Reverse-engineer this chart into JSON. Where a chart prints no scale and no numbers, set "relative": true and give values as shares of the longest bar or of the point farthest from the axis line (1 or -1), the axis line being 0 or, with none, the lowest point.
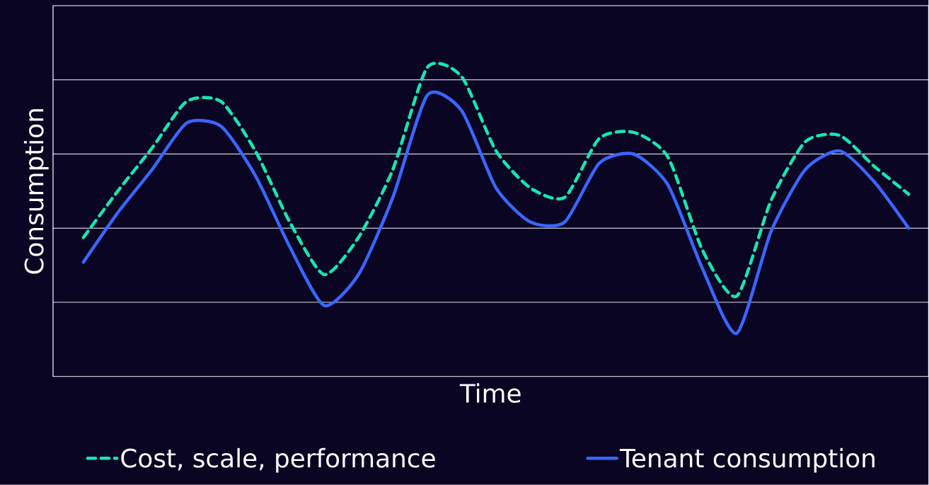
{
  "chart_data": {
    "type": "line",
    "relative": true,
    "xlabel": "Time",
    "ylabel": "Consumption",
    "grid": "y",
    "legend": "bottom",
    "categories": [
      null,
      null,
      null,
      null,
      null,
      null,
      null,
      null,
      null,
      null,
      null,
      null,
      null,
      null,
      null,
      null,
      null,
      null,
      null,
      null,
      null,
      null,
      null,
      null,
      null
    ],
    "series": [
      {
        "name": "Cost, scale, performance",
        "color": "#14e8b0",
        "line_style": "dashed",
        "values": [
          0.45,
          0.6,
          0.74,
          0.89,
          0.89,
          0.73,
          0.5,
          0.33,
          0.45,
          0.67,
          1,
          0.97,
          0.73,
          0.61,
          0.58,
          0.77,
          0.79,
          0.71,
          0.41,
          0.26,
          0.57,
          0.76,
          0.78,
          0.68,
          0.59
        ]
      },
      {
        "name": "Tenant consumption",
        "color": "#3a66ff",
        "line_style": "solid",
        "values": [
          0.37,
          0.53,
          0.67,
          0.82,
          0.81,
          0.65,
          0.42,
          0.23,
          0.33,
          0.58,
          0.91,
          0.86,
          0.61,
          0.5,
          0.5,
          0.69,
          0.72,
          0.62,
          0.35,
          0.14,
          0.47,
          0.67,
          0.73,
          0.63,
          0.48
        ]
      }
    ]
  }
}
